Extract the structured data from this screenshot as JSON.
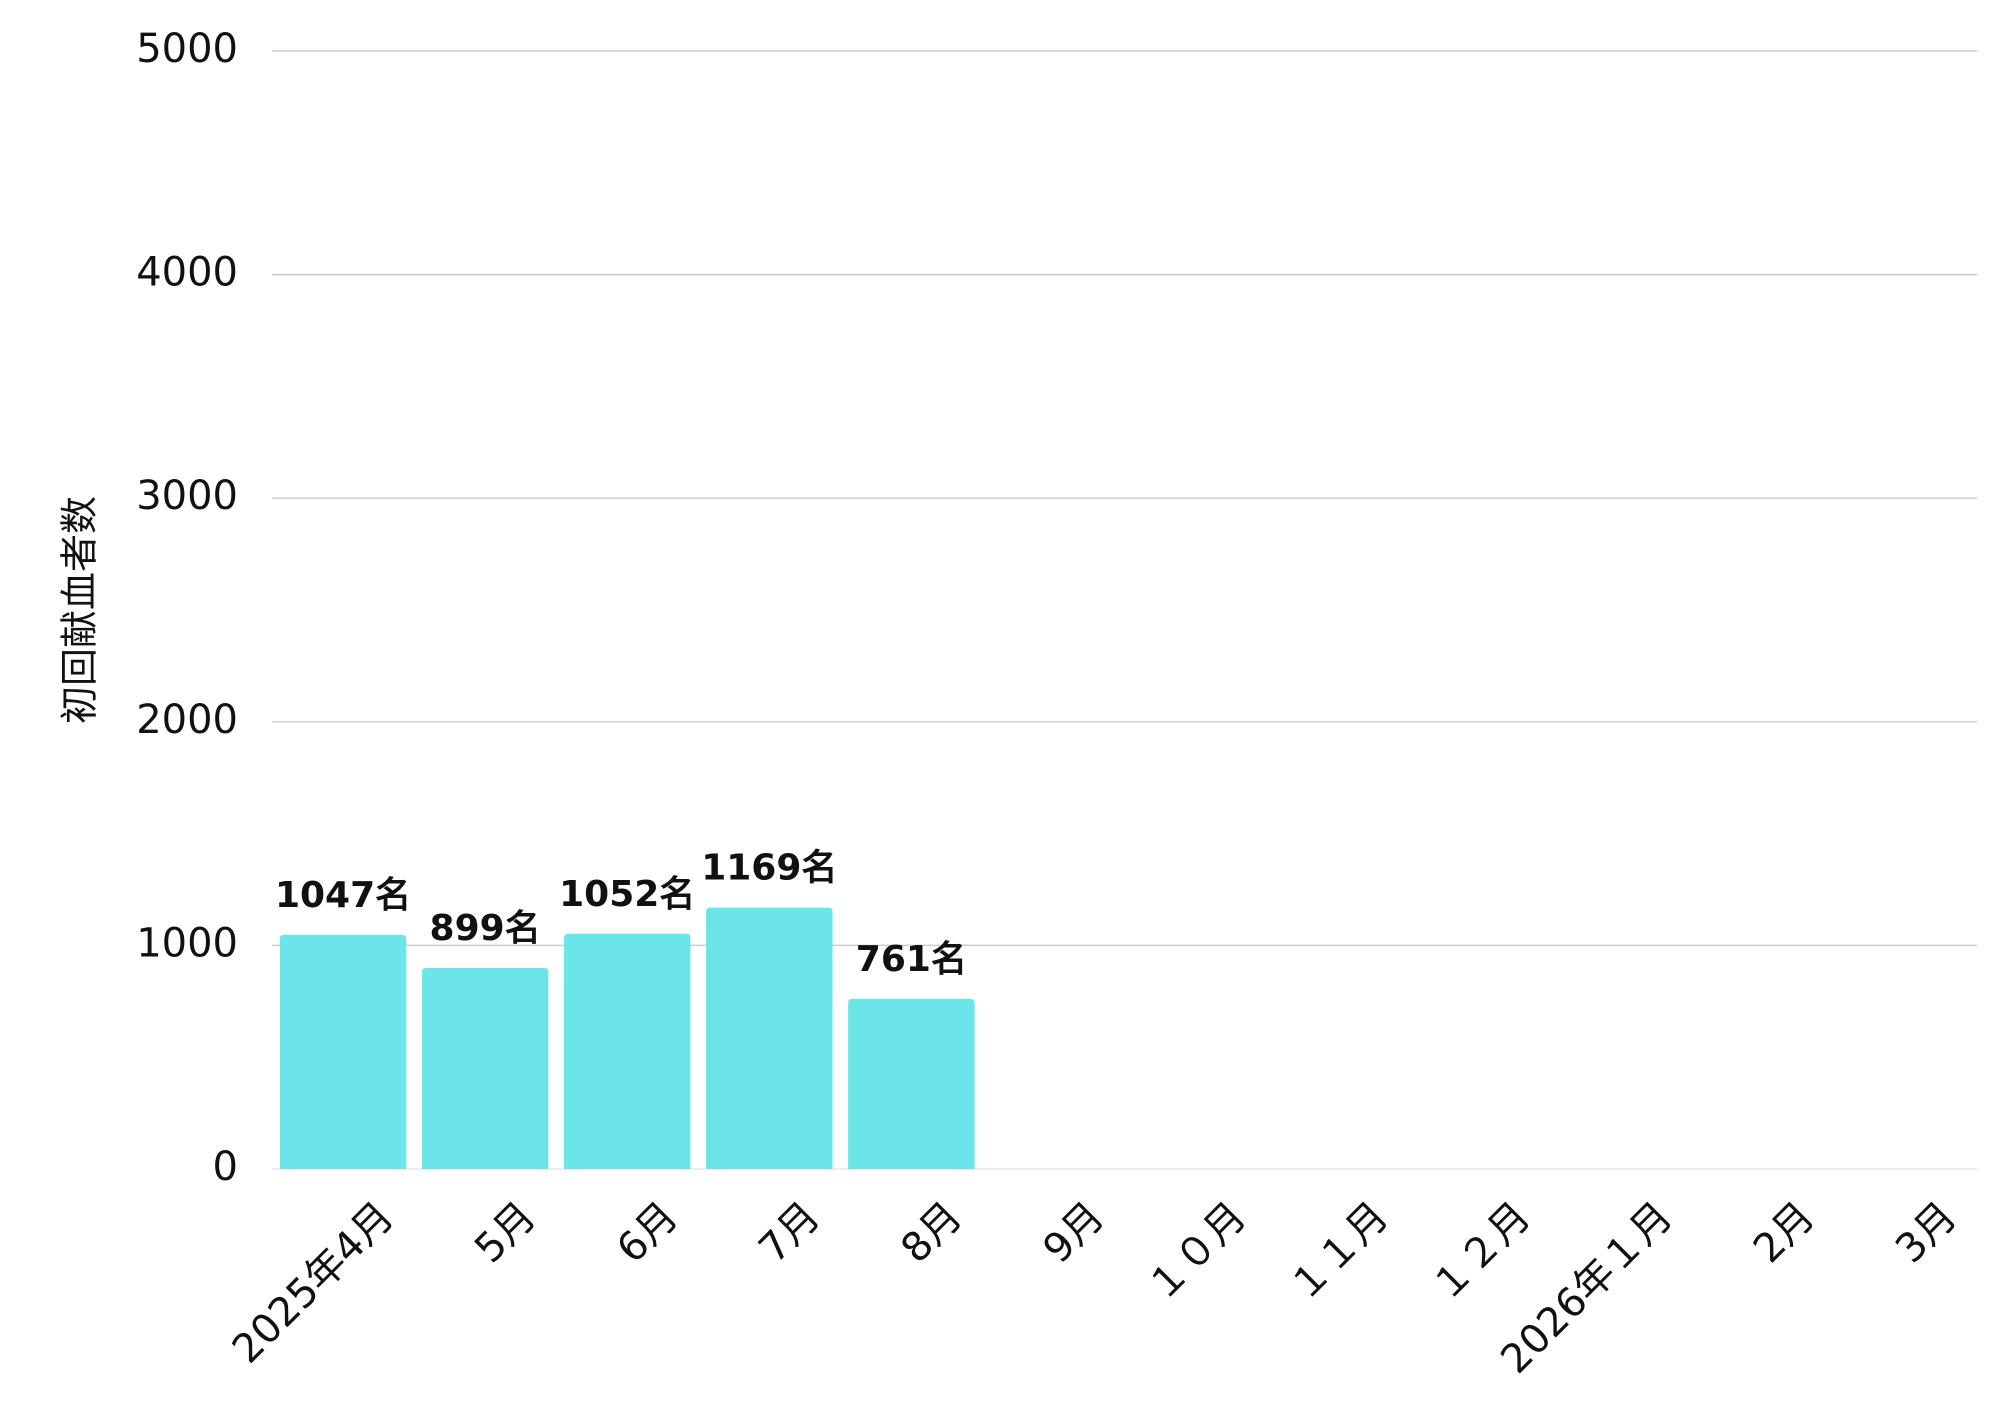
{
  "chart_data": {
    "type": "bar",
    "y_label": "初回献血者数",
    "categories": [
      "2025年4月",
      "5月",
      "6月",
      "7月",
      "8月",
      "9月",
      "１０月",
      "１１月",
      "１２月",
      "2026年１月",
      "2月",
      "3月"
    ],
    "values": [
      1047,
      899,
      1052,
      1169,
      761,
      null,
      null,
      null,
      null,
      null,
      null,
      null
    ],
    "value_labels": [
      "1047名",
      "899名",
      "1052名",
      "1169名",
      "761名",
      null,
      null,
      null,
      null,
      null,
      null,
      null
    ],
    "color": "#6ce5e8",
    "ylim": [
      0,
      5000
    ],
    "yticks": [
      0,
      1000,
      2000,
      3000,
      4000,
      5000
    ],
    "grid": true
  }
}
